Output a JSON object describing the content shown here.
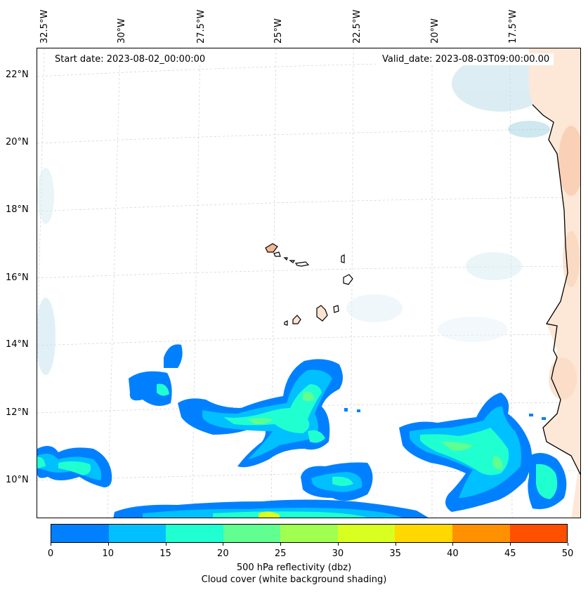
{
  "map": {
    "start_date": "Start date: 2023-08-02_00:00:00",
    "valid_date": "Valid_date: 2023-08-03T09:00:00.00",
    "lon_labels": [
      "32.5°W",
      "30°W",
      "27.5°W",
      "25°W",
      "22.5°W",
      "20°W",
      "17.5°W"
    ],
    "lat_labels": [
      "22°N",
      "20°N",
      "18°N",
      "16°N",
      "14°N",
      "12°N",
      "10°N"
    ]
  },
  "colorbar": {
    "levels": [
      "0",
      "10",
      "15",
      "20",
      "25",
      "30",
      "35",
      "40",
      "45",
      "50"
    ],
    "colors": [
      "#0080ff",
      "#00c0ff",
      "#20ffd0",
      "#60ff90",
      "#a0ff50",
      "#d8ff20",
      "#ffd800",
      "#ff9000",
      "#ff5000"
    ],
    "label_line1": "500 hPa reflectivity (dbz)",
    "label_line2": "Cloud cover (white background shading)"
  }
}
